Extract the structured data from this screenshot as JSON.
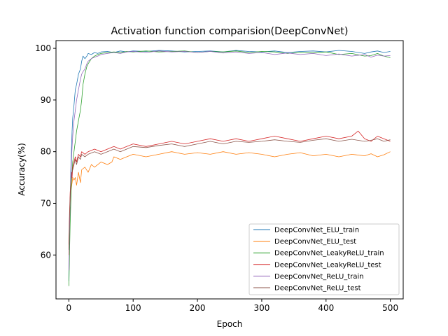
{
  "chart_data": {
    "type": "line",
    "title": "Activation function comparision(DeepConvNet)",
    "xlabel": "Epoch",
    "ylabel": "Accuracy(%)",
    "xlim": [
      -20,
      520
    ],
    "ylim": [
      51.5,
      101.5
    ],
    "xticks": [
      0,
      100,
      200,
      300,
      400,
      500
    ],
    "yticks": [
      60,
      70,
      80,
      90,
      100
    ],
    "grid": false,
    "legend_position": "lower-right",
    "series": [
      {
        "name": "DeepConvNet_ELU_train",
        "color": "#1f77b4",
        "x": [
          0,
          1,
          2,
          3,
          4,
          5,
          6,
          8,
          10,
          12,
          15,
          18,
          20,
          22,
          25,
          28,
          30,
          35,
          40,
          45,
          50,
          60,
          70,
          80,
          90,
          100,
          120,
          140,
          160,
          180,
          200,
          220,
          240,
          260,
          280,
          300,
          320,
          340,
          360,
          380,
          400,
          420,
          440,
          460,
          470,
          480,
          490,
          500
        ],
        "y": [
          55.0,
          63.0,
          70.0,
          76.0,
          80.0,
          84.0,
          86.5,
          89.0,
          92.0,
          93.0,
          95.0,
          96.0,
          97.5,
          98.5,
          98.0,
          98.5,
          99.0,
          98.8,
          99.2,
          99.0,
          99.3,
          99.4,
          99.2,
          99.5,
          99.3,
          99.5,
          99.4,
          99.6,
          99.5,
          99.3,
          99.4,
          99.5,
          99.3,
          99.6,
          99.4,
          99.3,
          99.5,
          99.2,
          99.4,
          99.5,
          99.3,
          99.6,
          99.4,
          99.0,
          99.3,
          99.5,
          99.2,
          99.4
        ]
      },
      {
        "name": "DeepConvNet_ELU_test",
        "color": "#ff7f0e",
        "x": [
          0,
          1,
          2,
          3,
          4,
          5,
          6,
          8,
          10,
          12,
          15,
          18,
          20,
          25,
          30,
          35,
          40,
          50,
          60,
          67,
          70,
          80,
          90,
          100,
          120,
          140,
          160,
          180,
          200,
          220,
          240,
          260,
          280,
          300,
          320,
          340,
          360,
          380,
          400,
          420,
          440,
          460,
          470,
          480,
          490,
          500
        ],
        "y": [
          60.0,
          66.0,
          70.0,
          72.0,
          73.0,
          74.0,
          75.0,
          74.5,
          75.0,
          73.5,
          76.0,
          74.0,
          76.5,
          77.0,
          76.0,
          77.5,
          77.0,
          78.0,
          77.5,
          78.0,
          79.0,
          78.5,
          79.0,
          79.5,
          79.0,
          79.5,
          80.0,
          79.5,
          79.8,
          79.5,
          80.0,
          79.5,
          79.8,
          79.5,
          79.0,
          79.5,
          79.8,
          79.2,
          79.5,
          79.0,
          79.5,
          79.2,
          79.6,
          79.0,
          79.4,
          80.0
        ]
      },
      {
        "name": "DeepConvNet_LeakyReLU_train",
        "color": "#2ca02c",
        "x": [
          0,
          1,
          2,
          3,
          4,
          5,
          6,
          8,
          10,
          12,
          15,
          18,
          20,
          22,
          25,
          28,
          30,
          35,
          40,
          45,
          50,
          60,
          70,
          80,
          90,
          100,
          120,
          140,
          160,
          180,
          200,
          220,
          240,
          260,
          280,
          300,
          320,
          340,
          360,
          380,
          400,
          420,
          440,
          460,
          470,
          480,
          490,
          500
        ],
        "y": [
          54.0,
          60.0,
          66.0,
          70.0,
          74.0,
          76.0,
          78.0,
          80.0,
          82.0,
          84.0,
          86.0,
          88.0,
          90.0,
          93.0,
          95.0,
          96.5,
          97.0,
          98.0,
          98.5,
          98.8,
          99.0,
          99.2,
          99.3,
          99.2,
          99.4,
          99.3,
          99.5,
          99.3,
          99.4,
          99.5,
          99.2,
          99.4,
          99.3,
          99.5,
          99.2,
          99.4,
          99.3,
          99.0,
          99.2,
          99.1,
          99.3,
          98.8,
          99.0,
          98.5,
          98.6,
          99.0,
          98.5,
          98.2
        ]
      },
      {
        "name": "DeepConvNet_LeakyReLU_test",
        "color": "#d62728",
        "x": [
          0,
          1,
          2,
          3,
          4,
          5,
          6,
          8,
          10,
          12,
          15,
          18,
          20,
          25,
          30,
          40,
          50,
          60,
          70,
          80,
          90,
          100,
          120,
          140,
          160,
          180,
          200,
          220,
          240,
          260,
          280,
          300,
          320,
          340,
          360,
          380,
          400,
          420,
          440,
          450,
          460,
          470,
          480,
          490,
          500
        ],
        "y": [
          62.0,
          68.0,
          72.0,
          74.0,
          76.0,
          75.0,
          77.0,
          78.0,
          79.0,
          78.0,
          79.5,
          79.0,
          80.0,
          79.5,
          80.0,
          80.5,
          80.0,
          80.5,
          81.0,
          80.5,
          81.0,
          81.5,
          81.0,
          81.5,
          82.0,
          81.5,
          82.0,
          82.5,
          82.0,
          82.5,
          82.0,
          82.5,
          83.0,
          82.5,
          82.0,
          82.5,
          83.0,
          82.5,
          83.0,
          84.0,
          82.5,
          82.0,
          83.0,
          82.5,
          82.0
        ]
      },
      {
        "name": "DeepConvNet_ReLU_train",
        "color": "#9467bd",
        "x": [
          0,
          1,
          2,
          3,
          4,
          5,
          6,
          8,
          10,
          12,
          15,
          18,
          20,
          22,
          25,
          28,
          30,
          35,
          40,
          45,
          50,
          60,
          70,
          80,
          90,
          100,
          120,
          140,
          160,
          180,
          200,
          220,
          240,
          260,
          280,
          300,
          320,
          340,
          360,
          380,
          400,
          420,
          440,
          460,
          470,
          480,
          490,
          500
        ],
        "y": [
          57.0,
          65.0,
          70.0,
          74.0,
          78.0,
          81.0,
          83.0,
          86.0,
          88.0,
          90.0,
          92.0,
          94.0,
          95.0,
          95.5,
          96.0,
          97.0,
          97.5,
          98.0,
          98.3,
          98.5,
          98.8,
          99.0,
          99.2,
          99.0,
          99.3,
          99.4,
          99.2,
          99.5,
          99.3,
          99.4,
          99.2,
          99.4,
          99.1,
          99.3,
          99.0,
          99.2,
          98.8,
          99.1,
          98.8,
          99.0,
          98.6,
          98.9,
          98.5,
          98.8,
          98.3,
          98.7,
          98.5,
          98.6
        ]
      },
      {
        "name": "DeepConvNet_ReLU_test",
        "color": "#8c564b",
        "x": [
          0,
          1,
          2,
          3,
          4,
          5,
          6,
          8,
          10,
          12,
          15,
          18,
          20,
          25,
          30,
          40,
          50,
          60,
          70,
          80,
          90,
          100,
          120,
          140,
          160,
          180,
          200,
          220,
          240,
          260,
          280,
          300,
          320,
          340,
          360,
          380,
          400,
          420,
          440,
          460,
          470,
          480,
          490,
          500
        ],
        "y": [
          61.0,
          67.0,
          71.0,
          73.5,
          75.0,
          76.0,
          76.5,
          77.5,
          78.5,
          77.5,
          79.0,
          78.5,
          79.5,
          79.0,
          79.5,
          80.0,
          79.5,
          80.0,
          80.5,
          80.0,
          80.5,
          81.0,
          80.8,
          81.2,
          81.5,
          81.0,
          81.5,
          82.0,
          81.5,
          82.0,
          81.8,
          82.0,
          82.3,
          82.0,
          81.8,
          82.2,
          82.5,
          82.0,
          82.4,
          82.0,
          82.2,
          82.5,
          82.0,
          82.3
        ]
      }
    ]
  }
}
